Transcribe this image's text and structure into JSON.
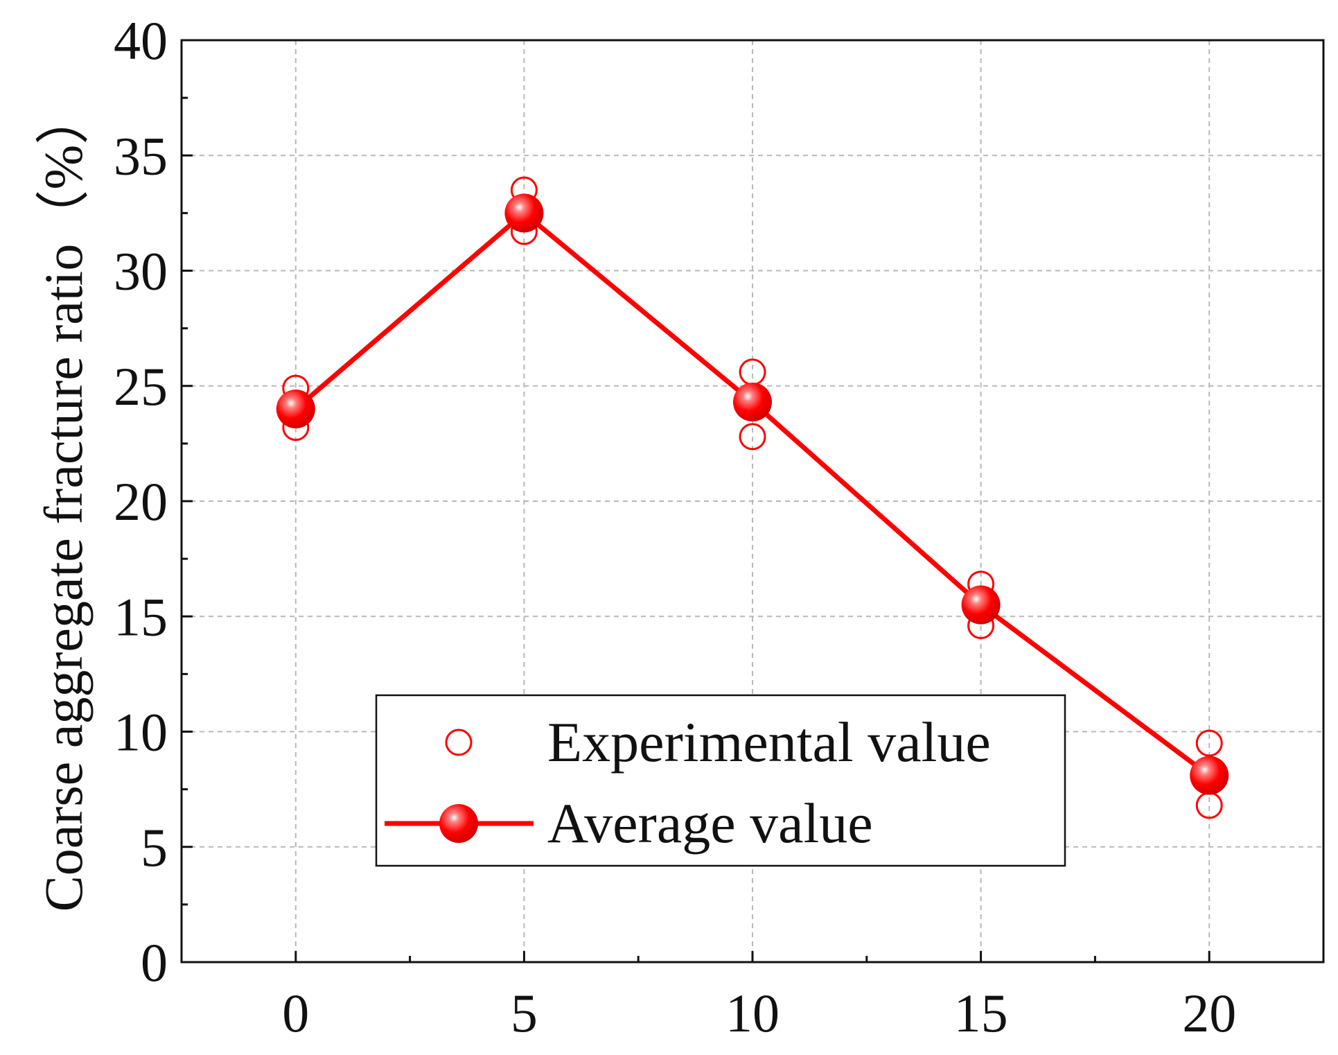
{
  "chart_data": {
    "type": "line",
    "title": "",
    "xlabel": "",
    "ylabel": "Coarse aggregate fracture ratio（%）",
    "xlim": [
      -2.5,
      22.5
    ],
    "ylim": [
      0,
      40
    ],
    "x_ticks": [
      "0",
      "5",
      "10",
      "15",
      "20"
    ],
    "y_ticks": [
      "0",
      "5",
      "10",
      "15",
      "20",
      "25",
      "30",
      "35",
      "40"
    ],
    "grid": true,
    "legend_position": "bottom-center",
    "series": [
      {
        "name": "Experimental value",
        "kind": "scatter",
        "marker": "open-circle",
        "color": "#ff0000",
        "points": [
          {
            "x": 0,
            "y": 24.9
          },
          {
            "x": 0,
            "y": 23.2
          },
          {
            "x": 5,
            "y": 33.5
          },
          {
            "x": 5,
            "y": 31.7
          },
          {
            "x": 10,
            "y": 25.6
          },
          {
            "x": 10,
            "y": 22.8
          },
          {
            "x": 15,
            "y": 16.4
          },
          {
            "x": 15,
            "y": 14.6
          },
          {
            "x": 20,
            "y": 9.5
          },
          {
            "x": 20,
            "y": 6.8
          }
        ]
      },
      {
        "name": "Average value",
        "kind": "line",
        "marker": "filled-circle",
        "color": "#ff0000",
        "x": [
          0,
          5,
          10,
          15,
          20
        ],
        "y": [
          24.0,
          32.5,
          24.3,
          15.5,
          8.1
        ]
      }
    ]
  }
}
